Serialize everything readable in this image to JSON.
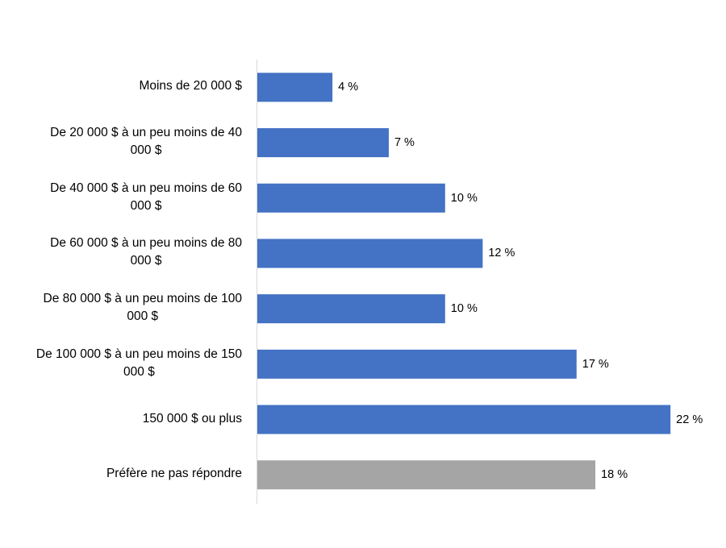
{
  "chart_data": {
    "type": "bar",
    "orientation": "horizontal",
    "title": "",
    "xlabel": "",
    "ylabel": "",
    "categories": [
      "Moins de 20 000 $",
      "De 20 000 $ à un peu moins de 40 000 $",
      "De 40 000 $ à un peu moins de 60 000 $",
      "De 60 000 $ à un peu moins de 80 000 $",
      "De 80 000 $ à un peu moins de 100 000 $",
      "De 100 000 $ à un peu moins de 150 000 $",
      "150 000 $ ou plus",
      "Préfère ne pas répondre"
    ],
    "values": [
      4,
      7,
      10,
      12,
      10,
      17,
      22,
      18
    ],
    "data_labels": [
      "4 %",
      "7 %",
      "10 %",
      "12 %",
      "10 %",
      "17 %",
      "22 %",
      "18 %"
    ],
    "bar_colors": [
      "#4472C4",
      "#4472C4",
      "#4472C4",
      "#4472C4",
      "#4472C4",
      "#4472C4",
      "#4472C4",
      "#A5A5A5"
    ],
    "xlim": [
      0,
      24
    ],
    "grid": false,
    "legend": "none"
  }
}
